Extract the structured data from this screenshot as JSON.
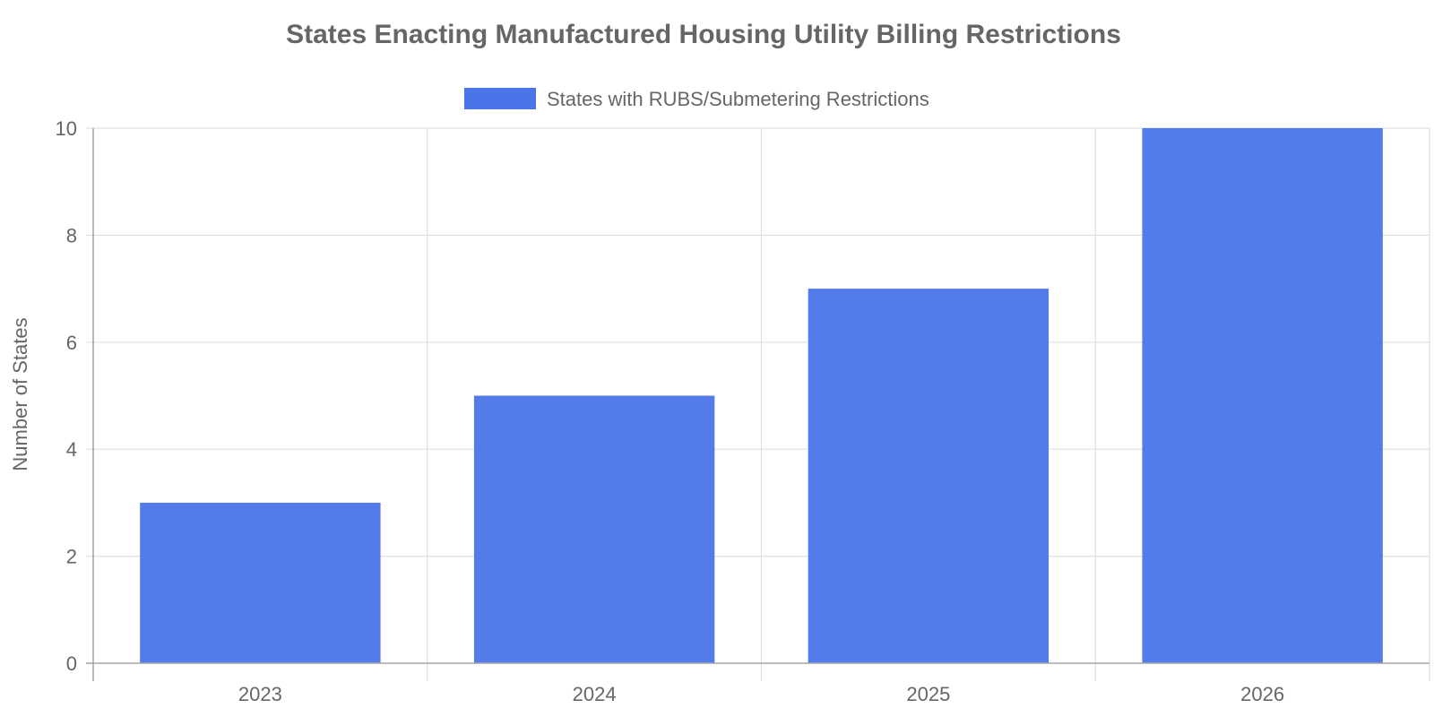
{
  "chart_data": {
    "type": "bar",
    "title": "States Enacting Manufactured Housing Utility Billing Restrictions",
    "categories": [
      "2023",
      "2024",
      "2025",
      "2026"
    ],
    "series": [
      {
        "name": "States with RUBS/Submetering Restrictions",
        "values": [
          3,
          5,
          7,
          10
        ],
        "color": "#4a74e8"
      }
    ],
    "ylabel": "Number of States",
    "xlabel": "",
    "ylim": [
      0,
      10
    ],
    "yticks": [
      "0",
      "2",
      "4",
      "6",
      "8",
      "10"
    ],
    "grid": true,
    "legend_position": "top-center"
  }
}
